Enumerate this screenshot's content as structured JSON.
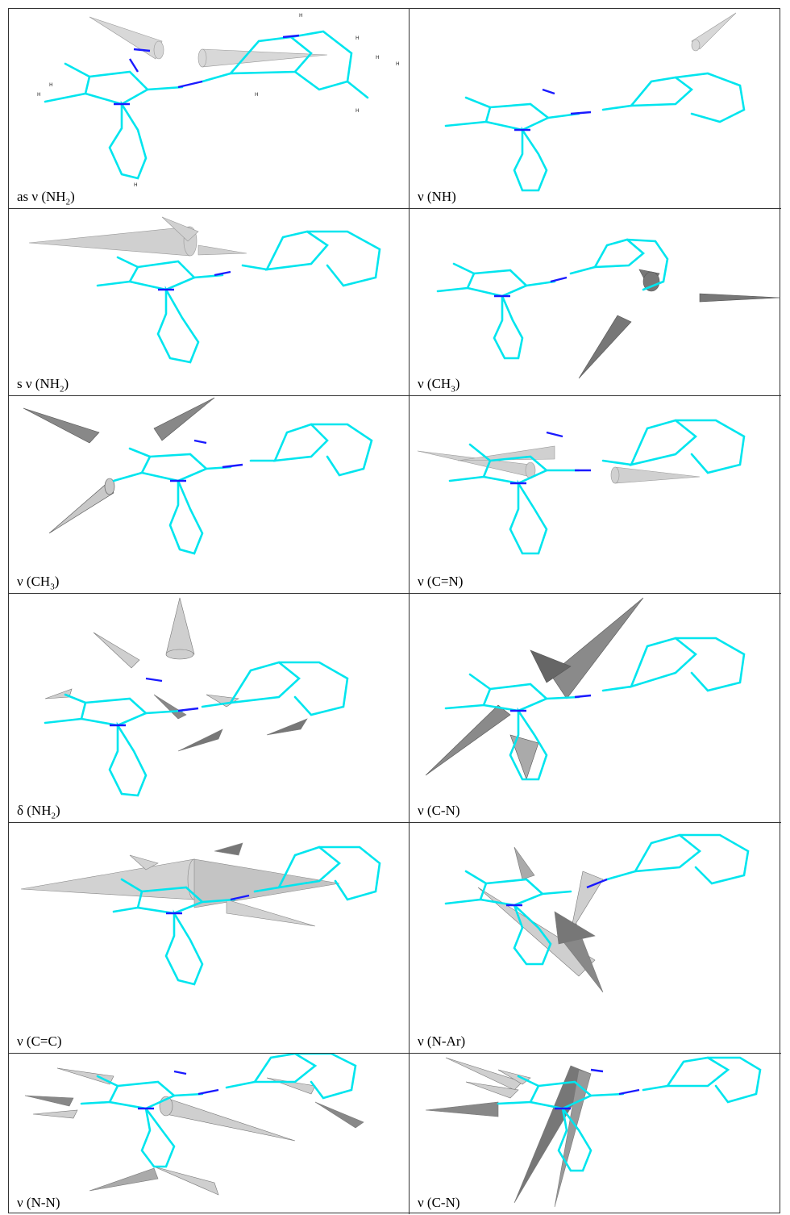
{
  "colors": {
    "bond": "#00e5ee",
    "nitrogen": "#1a1aff",
    "arrow_light": "#d4d4d4",
    "arrow_dark": "#8a8a8a",
    "border": "#333333"
  },
  "panels": [
    {
      "id": "p1",
      "prefix": "as ν (NH",
      "sub": "2",
      "suffix": ")"
    },
    {
      "id": "p2",
      "prefix": "ν (NH)",
      "sub": "",
      "suffix": ""
    },
    {
      "id": "p3",
      "prefix": "s ν (NH",
      "sub": "2",
      "suffix": ")"
    },
    {
      "id": "p4",
      "prefix": "ν (CH",
      "sub": "3",
      "suffix": ")"
    },
    {
      "id": "p5",
      "prefix": "ν (CH",
      "sub": "3",
      "suffix": ")"
    },
    {
      "id": "p6",
      "prefix": "ν (C=N)",
      "sub": "",
      "suffix": ""
    },
    {
      "id": "p7",
      "prefix": "δ (NH",
      "sub": "2",
      "suffix": ")"
    },
    {
      "id": "p8",
      "prefix": "ν (C-N)",
      "sub": "",
      "suffix": ""
    },
    {
      "id": "p9",
      "prefix": "ν (C=C)",
      "sub": "",
      "suffix": ""
    },
    {
      "id": "p10",
      "prefix": "ν (N-Ar)",
      "sub": "",
      "suffix": ""
    },
    {
      "id": "p11",
      "prefix": "ν (N-N)",
      "sub": "",
      "suffix": ""
    },
    {
      "id": "p12",
      "prefix": "ν (C-N)",
      "sub": "",
      "suffix": ""
    }
  ]
}
